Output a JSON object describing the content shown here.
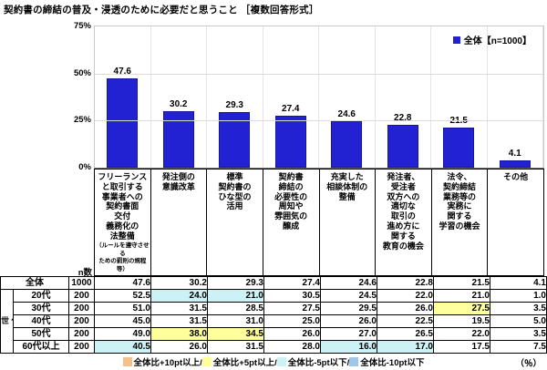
{
  "title": "契約書の締結の普及・浸透のために必要だと思うこと ［複数回答形式］",
  "legend": {
    "label": "全体【n=1000】"
  },
  "colors": {
    "bar": "#2222d2",
    "highlight_yellow": "#ffff9e",
    "highlight_cyan": "#ccf2f5",
    "highlight_orange": "#f4c08c",
    "highlight_blue": "#9fc7ea"
  },
  "chart_data": {
    "type": "bar",
    "title": "契約書の締結の普及・浸透のために必要だと思うこと［複数回答形式］",
    "legend": [
      "全体【n=1000】"
    ],
    "ylim": [
      0,
      75
    ],
    "ytick_labels": [
      "75%",
      "50%",
      "25%",
      "0%"
    ],
    "grid": true,
    "bar_color": "#2222d2",
    "categories": [
      "フリーランス\nと取引する\n事業者への\n契約書面\n交付\n義務化の\n法整備",
      "発注側の\n意識改革",
      "標準\n契約書の\nひな型の\n活用",
      "契約書\n締結の\n必要性の\n周知や\n雰囲気の\n醸成",
      "充実した\n相談体制の\n整備",
      "発注者、\n受注者\n双方への\n適切な\n取引の\n進め方に\n関する\n教育の機会",
      "法令、\n契約締結\n業務等の\n実務に\n関する\n学習の機会",
      "その他"
    ],
    "category_notes": [
      "（ルールを遵守させる\nための罰則の規程等）",
      "",
      "",
      "",
      "",
      "",
      "",
      ""
    ],
    "values": [
      47.6,
      30.2,
      29.3,
      27.4,
      24.6,
      22.8,
      21.5,
      4.1
    ]
  },
  "table": {
    "n_header": "n数",
    "group_label": "世\n代\n別",
    "rows": [
      {
        "label": "全体",
        "n": "1000",
        "values": [
          "47.6",
          "30.2",
          "29.3",
          "27.4",
          "24.6",
          "22.8",
          "21.5",
          "4.1"
        ],
        "hl": [
          "",
          "",
          "",
          "",
          "",
          "",
          "",
          ""
        ]
      },
      {
        "label": "20代",
        "n": "200",
        "values": [
          "52.5",
          "24.0",
          "21.0",
          "30.5",
          "24.5",
          "22.0",
          "21.0",
          "1.0"
        ],
        "hl": [
          "",
          "cyan",
          "cyan",
          "",
          "",
          "",
          "",
          ""
        ]
      },
      {
        "label": "30代",
        "n": "200",
        "values": [
          "51.0",
          "31.5",
          "28.5",
          "27.5",
          "29.5",
          "26.0",
          "27.5",
          "3.5"
        ],
        "hl": [
          "",
          "",
          "",
          "",
          "",
          "",
          "yellow",
          ""
        ]
      },
      {
        "label": "40代",
        "n": "200",
        "values": [
          "45.0",
          "31.5",
          "31.0",
          "25.0",
          "26.0",
          "22.5",
          "19.5",
          "5.0"
        ],
        "hl": [
          "",
          "",
          "",
          "",
          "",
          "",
          "",
          ""
        ]
      },
      {
        "label": "50代",
        "n": "200",
        "values": [
          "49.0",
          "38.0",
          "34.5",
          "26.0",
          "27.0",
          "26.5",
          "22.0",
          "3.5"
        ],
        "hl": [
          "",
          "yellow",
          "yellow",
          "",
          "",
          "",
          "",
          ""
        ]
      },
      {
        "label": "60代以上",
        "n": "200",
        "values": [
          "40.5",
          "26.0",
          "31.5",
          "28.0",
          "16.0",
          "17.0",
          "17.5",
          "7.5"
        ],
        "hl": [
          "cyan",
          "",
          "",
          "",
          "cyan",
          "cyan",
          "",
          ""
        ]
      }
    ]
  },
  "footer": {
    "items": [
      {
        "label": "全体比+10pt以上/",
        "color": "#f4c08c"
      },
      {
        "label": "全体比+5pt以上/",
        "color": "#ffff9e"
      },
      {
        "label": "全体比-5pt以下/",
        "color": "#ccf2f5"
      },
      {
        "label": "全体比-10pt以下",
        "color": "#9fc7ea"
      }
    ],
    "unit": "（％）"
  }
}
